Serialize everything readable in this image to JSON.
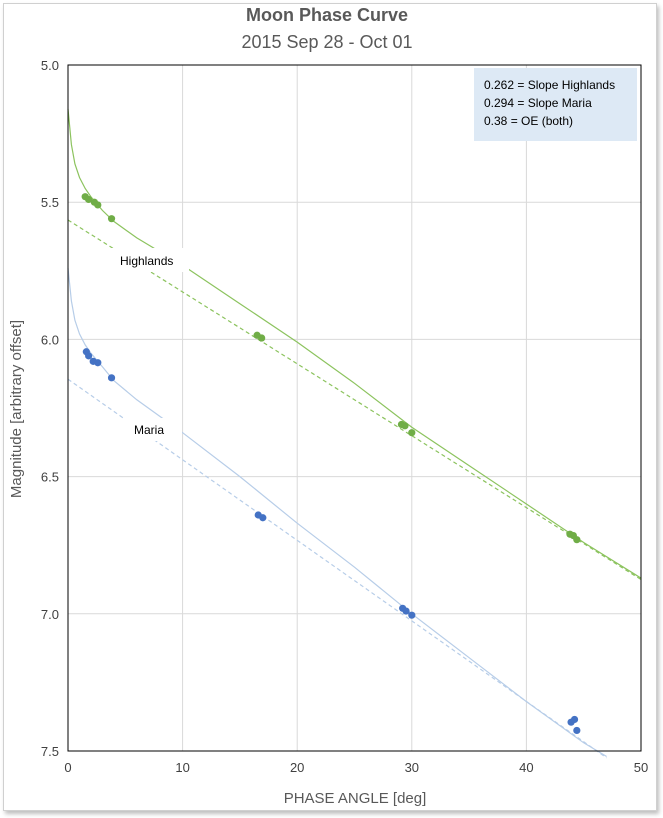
{
  "chart_data": {
    "type": "scatter",
    "title": "Moon Phase Curve",
    "subtitle": "2015 Sep 28 - Oct 01",
    "xlabel": "PHASE ANGLE [deg]",
    "ylabel": "Magnitude [arbitrary offset]",
    "xlim": [
      0,
      50
    ],
    "ylim": [
      5.0,
      7.5
    ],
    "y_inverted": true,
    "grid": true,
    "x_ticks": [
      "0",
      "10",
      "20",
      "30",
      "40",
      "50"
    ],
    "y_ticks": [
      "5.0",
      "5.5",
      "6.0",
      "6.5",
      "7.0",
      "7.5"
    ],
    "annotation": [
      "0.262 = Slope Highlands",
      "0.294 = Slope Maria",
      "0.38 = OE (both)"
    ],
    "series": [
      {
        "name": "Highlands",
        "color": "#70ad47",
        "points": [
          [
            1.5,
            5.48
          ],
          [
            1.8,
            5.49
          ],
          [
            2.3,
            5.5
          ],
          [
            2.6,
            5.51
          ],
          [
            3.8,
            5.56
          ],
          [
            16.5,
            5.985
          ],
          [
            16.9,
            5.995
          ],
          [
            29.1,
            6.31
          ],
          [
            29.4,
            6.315
          ],
          [
            30.0,
            6.34
          ],
          [
            43.8,
            6.71
          ],
          [
            44.1,
            6.715
          ],
          [
            44.4,
            6.73
          ]
        ],
        "linear_fit": [
          [
            0,
            5.565
          ],
          [
            50,
            6.875
          ]
        ],
        "curve_fit": [
          [
            0,
            5.16
          ],
          [
            0.3,
            5.29
          ],
          [
            0.6,
            5.36
          ],
          [
            1.0,
            5.41
          ],
          [
            1.5,
            5.45
          ],
          [
            2.0,
            5.48
          ],
          [
            3.0,
            5.53
          ],
          [
            4.0,
            5.57
          ],
          [
            6.0,
            5.63
          ],
          [
            8.0,
            5.68
          ],
          [
            10.0,
            5.73
          ],
          [
            15.0,
            5.87
          ],
          [
            20.0,
            6.01
          ],
          [
            25.0,
            6.16
          ],
          [
            30.0,
            6.32
          ],
          [
            35.0,
            6.46
          ],
          [
            40.0,
            6.6
          ],
          [
            45.0,
            6.74
          ],
          [
            50.0,
            6.87
          ]
        ]
      },
      {
        "name": "Maria",
        "color": "#4472c4",
        "points": [
          [
            1.6,
            6.045
          ],
          [
            1.8,
            6.06
          ],
          [
            2.2,
            6.08
          ],
          [
            2.6,
            6.085
          ],
          [
            3.8,
            6.14
          ],
          [
            16.6,
            6.64
          ],
          [
            17.0,
            6.65
          ],
          [
            29.2,
            6.98
          ],
          [
            29.5,
            6.99
          ],
          [
            30.0,
            7.005
          ],
          [
            43.9,
            7.395
          ],
          [
            44.2,
            7.385
          ],
          [
            44.4,
            7.425
          ]
        ],
        "linear_fit": [
          [
            0,
            6.145
          ],
          [
            47.0,
            7.525
          ]
        ],
        "curve_fit": [
          [
            0,
            5.74
          ],
          [
            0.3,
            5.86
          ],
          [
            0.6,
            5.93
          ],
          [
            1.0,
            5.98
          ],
          [
            1.5,
            6.02
          ],
          [
            2.0,
            6.05
          ],
          [
            3.0,
            6.1
          ],
          [
            4.0,
            6.15
          ],
          [
            6.0,
            6.22
          ],
          [
            8.0,
            6.28
          ],
          [
            10.0,
            6.34
          ],
          [
            15.0,
            6.5
          ],
          [
            20.0,
            6.67
          ],
          [
            25.0,
            6.83
          ],
          [
            30.0,
            7.0
          ],
          [
            35.0,
            7.16
          ],
          [
            40.0,
            7.32
          ],
          [
            45.0,
            7.47
          ],
          [
            47.0,
            7.52
          ]
        ]
      }
    ]
  }
}
